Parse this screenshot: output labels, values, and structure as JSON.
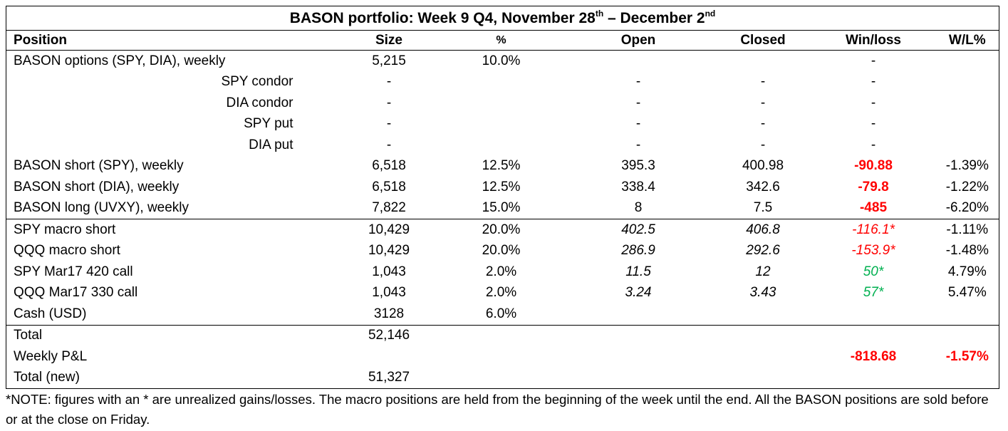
{
  "title": {
    "prefix": "BASON portfolio: Week 9 Q4, November 28",
    "sup1": "th",
    "mid": " – December 2",
    "sup2": "nd"
  },
  "headers": {
    "position": "Position",
    "size": "Size",
    "pct": "%",
    "open": "Open",
    "closed": "Closed",
    "winloss": "Win/loss",
    "wlpct": "W/L%"
  },
  "rows": [
    {
      "position": "BASON options (SPY, DIA), weekly",
      "size": "5,215",
      "pct": "10.0%",
      "open": "",
      "closed": "",
      "winloss": "-",
      "wlpct": ""
    },
    {
      "position": "SPY condor",
      "size": "-",
      "pct": "",
      "open": "-",
      "closed": "-",
      "winloss": "-",
      "wlpct": ""
    },
    {
      "position": "DIA condor",
      "size": "-",
      "pct": "",
      "open": "-",
      "closed": "-",
      "winloss": "-",
      "wlpct": ""
    },
    {
      "position": "SPY put",
      "size": "-",
      "pct": "",
      "open": "-",
      "closed": "-",
      "winloss": "-",
      "wlpct": ""
    },
    {
      "position": "DIA put",
      "size": "-",
      "pct": "",
      "open": "-",
      "closed": "-",
      "winloss": "-",
      "wlpct": ""
    },
    {
      "position": "BASON short (SPY), weekly",
      "size": "6,518",
      "pct": "12.5%",
      "open": "395.3",
      "closed": "400.98",
      "winloss": "-90.88",
      "wlpct": "-1.39%"
    },
    {
      "position": "BASON short (DIA), weekly",
      "size": "6,518",
      "pct": "12.5%",
      "open": "338.4",
      "closed": "342.6",
      "winloss": "-79.8",
      "wlpct": "-1.22%"
    },
    {
      "position": "BASON long (UVXY), weekly",
      "size": "7,822",
      "pct": "15.0%",
      "open": "8",
      "closed": "7.5",
      "winloss": "-485",
      "wlpct": "-6.20%"
    },
    {
      "position": "SPY macro short",
      "size": "10,429",
      "pct": "20.0%",
      "open": "402.5",
      "closed": "406.8",
      "winloss": "-116.1*",
      "wlpct": "-1.11%"
    },
    {
      "position": "QQQ macro short",
      "size": "10,429",
      "pct": "20.0%",
      "open": "286.9",
      "closed": "292.6",
      "winloss": "-153.9*",
      "wlpct": "-1.48%"
    },
    {
      "position": "SPY Mar17 420 call",
      "size": "1,043",
      "pct": "2.0%",
      "open": "11.5",
      "closed": "12",
      "winloss": "50*",
      "wlpct": "4.79%"
    },
    {
      "position": "QQQ Mar17 330 call",
      "size": "1,043",
      "pct": "2.0%",
      "open": "3.24",
      "closed": "3.43",
      "winloss": "57*",
      "wlpct": "5.47%"
    },
    {
      "position": "Cash (USD)",
      "size": "3128",
      "pct": "6.0%",
      "open": "",
      "closed": "",
      "winloss": "",
      "wlpct": ""
    }
  ],
  "totals": {
    "total_label": "Total",
    "total_value": "52,146",
    "pnl_label": "Weekly P&L",
    "pnl_value": "-818.68",
    "pnl_pct": "-1.57%",
    "total_new_label": "Total (new)",
    "total_new_value": "51,327"
  },
  "note": "*NOTE: figures with an * are unrealized gains/losses. The macro positions are held from the beginning of the week until the end. All the BASON positions are sold before or at the close on Friday.",
  "colors": {
    "loss": "#ff0000",
    "gain": "#00b050"
  }
}
